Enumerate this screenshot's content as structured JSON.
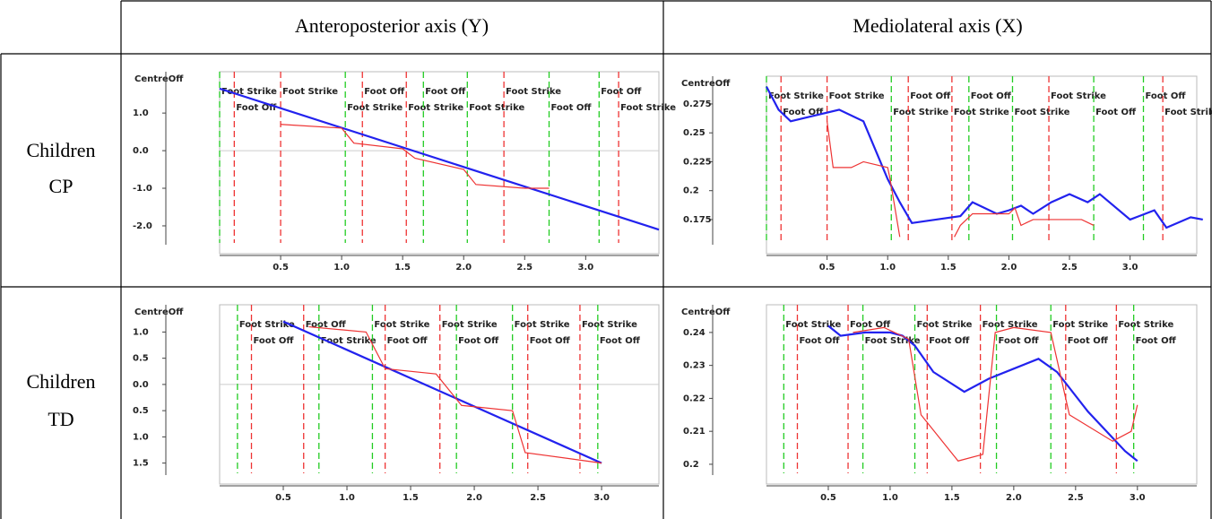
{
  "table": {
    "header": [
      "Anteroposterior axis (Y)",
      "Mediolateral axis (X)"
    ],
    "rows": [
      {
        "label": [
          "Children",
          "CP"
        ]
      },
      {
        "label": [
          "Children",
          "TD"
        ]
      }
    ]
  },
  "charts": [
    {
      "type": "line",
      "y_label": "CentreOff",
      "xlim": [
        0,
        3.6
      ],
      "ylim": [
        -2.74,
        2.1
      ],
      "xticks": [
        {
          "value": 0.5,
          "label": "0.5"
        },
        {
          "value": 1,
          "label": "1.0"
        },
        {
          "value": 1.5,
          "label": "1.5"
        },
        {
          "value": 2,
          "label": "2.0"
        },
        {
          "value": 2.5,
          "label": "2.5"
        },
        {
          "value": 3,
          "label": "3.0"
        }
      ],
      "yticks": [
        {
          "value": 1,
          "label": "1.0"
        },
        {
          "value": 0,
          "label": "0.0"
        },
        {
          "value": -1,
          "label": "-1.0"
        },
        {
          "value": -2,
          "label": "-2.0"
        }
      ],
      "zero_line": true,
      "events": [
        {
          "x": 0,
          "label": "Foot Strike",
          "color": "#2c2"
        },
        {
          "x": 0.12,
          "label": "Foot Off",
          "color": "#e33"
        },
        {
          "x": 0.5,
          "label": "Foot Strike",
          "color": "#e33"
        },
        {
          "x": 1.03,
          "label": "Foot Strike",
          "color": "#2c2"
        },
        {
          "x": 1.17,
          "label": "Foot Off",
          "color": "#e33"
        },
        {
          "x": 1.53,
          "label": "Foot Strike",
          "color": "#e33"
        },
        {
          "x": 1.67,
          "label": "Foot Off",
          "color": "#2c2"
        },
        {
          "x": 2.03,
          "label": "Foot Strike",
          "color": "#2c2"
        },
        {
          "x": 2.33,
          "label": "Foot Strike",
          "color": "#e33"
        },
        {
          "x": 2.7,
          "label": "Foot Off",
          "color": "#2c2"
        },
        {
          "x": 3.11,
          "label": "Foot Off",
          "color": "#2c2"
        },
        {
          "x": 3.27,
          "label": "Foot Strike",
          "color": "#e33"
        }
      ],
      "series": [
        {
          "color": "#22e",
          "x": [
            0,
            3.6
          ],
          "values": [
            1.65,
            -2.1
          ]
        },
        {
          "color": "#e33",
          "x": [
            0.5,
            1.0,
            1.1,
            1.5,
            1.6,
            2.0,
            2.1,
            2.5,
            2.7
          ],
          "values": [
            0.7,
            0.6,
            0.2,
            0.05,
            -0.2,
            -0.5,
            -0.9,
            -1.0,
            -1.0
          ]
        }
      ]
    },
    {
      "type": "line",
      "y_label": "CentreOff",
      "xlim": [
        0,
        3.55
      ],
      "ylim": [
        0.1455,
        0.299
      ],
      "xticks": [
        {
          "value": 0.5,
          "label": "0.5"
        },
        {
          "value": 1,
          "label": "1.0"
        },
        {
          "value": 1.5,
          "label": "1.5"
        },
        {
          "value": 2,
          "label": "2.0"
        },
        {
          "value": 2.5,
          "label": "2.5"
        },
        {
          "value": 3,
          "label": "3.0"
        }
      ],
      "yticks": [
        0.275,
        0.25,
        0.225,
        0.2,
        0.175
      ],
      "zero_line": false,
      "events": [
        {
          "x": 0,
          "label": "Foot Strike",
          "color": "#2c2"
        },
        {
          "x": 0.12,
          "label": "Foot Off",
          "color": "#e33"
        },
        {
          "x": 0.5,
          "label": "Foot Strike",
          "color": "#e33"
        },
        {
          "x": 1.03,
          "label": "Foot Strike",
          "color": "#2c2"
        },
        {
          "x": 1.17,
          "label": "Foot Off",
          "color": "#e33"
        },
        {
          "x": 1.53,
          "label": "Foot Strike",
          "color": "#e33"
        },
        {
          "x": 1.67,
          "label": "Foot Off",
          "color": "#2c2"
        },
        {
          "x": 2.03,
          "label": "Foot Strike",
          "color": "#2c2"
        },
        {
          "x": 2.33,
          "label": "Foot Strike",
          "color": "#e33"
        },
        {
          "x": 2.7,
          "label": "Foot Off",
          "color": "#2c2"
        },
        {
          "x": 3.11,
          "label": "Foot Off",
          "color": "#2c2"
        },
        {
          "x": 3.27,
          "label": "Foot Strike",
          "color": "#e33"
        }
      ],
      "series": [
        {
          "color": "#22e",
          "x": [
            0,
            0.1,
            0.2,
            0.4,
            0.6,
            0.8,
            1.0,
            1.1,
            1.2,
            1.4,
            1.6,
            1.7,
            1.9,
            2.0,
            2.1,
            2.2,
            2.35,
            2.5,
            2.65,
            2.75,
            3.0,
            3.2,
            3.3,
            3.5,
            3.6
          ],
          "values": [
            0.29,
            0.27,
            0.26,
            0.265,
            0.27,
            0.26,
            0.21,
            0.19,
            0.172,
            0.175,
            0.178,
            0.19,
            0.18,
            0.183,
            0.187,
            0.18,
            0.19,
            0.197,
            0.19,
            0.197,
            0.175,
            0.183,
            0.168,
            0.177,
            0.175
          ]
        },
        {
          "color": "#e33",
          "x": [
            0.5,
            0.55,
            0.7,
            0.8,
            1.0,
            1.02,
            1.1,
            1.2,
            1.55,
            1.6,
            1.7,
            2.0,
            2.05,
            2.1,
            2.2,
            2.6,
            2.7
          ],
          "values": [
            0.26,
            0.22,
            0.22,
            0.225,
            0.22,
            0.21,
            0.16,
            null,
            0.16,
            0.17,
            0.18,
            0.18,
            0.185,
            0.17,
            0.175,
            0.175,
            0.17
          ]
        }
      ]
    },
    {
      "type": "line",
      "y_label": "CentreOff",
      "xlim": [
        0,
        3.45
      ],
      "ylim": [
        -1.9,
        1.52
      ],
      "xticks": [
        {
          "value": 0.5,
          "label": "0.5"
        },
        {
          "value": 1,
          "label": "1.0"
        },
        {
          "value": 1.5,
          "label": "1.5"
        },
        {
          "value": 2,
          "label": "2.0"
        },
        {
          "value": 2.5,
          "label": "2.5"
        },
        {
          "value": 3,
          "label": "3.0"
        }
      ],
      "yticks": [
        {
          "value": 1,
          "label": "1.0"
        },
        {
          "value": 0.5,
          "label": "0.5"
        },
        {
          "value": 0,
          "label": "0.0"
        },
        {
          "value": -0.5,
          "label": "0.5"
        },
        {
          "value": -1,
          "label": "1.0"
        },
        {
          "value": -1.5,
          "label": "1.5"
        }
      ],
      "zero_line": true,
      "events": [
        {
          "x": 0.14,
          "label": "Foot Strike",
          "color": "#2c2"
        },
        {
          "x": 0.25,
          "label": "Foot Off",
          "color": "#e33"
        },
        {
          "x": 0.66,
          "label": "Foot Off",
          "color": "#e33"
        },
        {
          "x": 0.78,
          "label": "Foot Strike",
          "color": "#2c2"
        },
        {
          "x": 1.2,
          "label": "Foot Strike",
          "color": "#2c2"
        },
        {
          "x": 1.3,
          "label": "Foot Off",
          "color": "#e33"
        },
        {
          "x": 1.73,
          "label": "Foot Strike",
          "color": "#e33"
        },
        {
          "x": 1.86,
          "label": "Foot Off",
          "color": "#2c2"
        },
        {
          "x": 2.3,
          "label": "Foot Strike",
          "color": "#2c2"
        },
        {
          "x": 2.42,
          "label": "Foot Off",
          "color": "#e33"
        },
        {
          "x": 2.83,
          "label": "Foot Strike",
          "color": "#e33"
        },
        {
          "x": 2.97,
          "label": "Foot Off",
          "color": "#2c2"
        }
      ],
      "series": [
        {
          "color": "#22e",
          "x": [
            0.5,
            3.0
          ],
          "values": [
            1.2,
            -1.5
          ]
        },
        {
          "color": "#e33",
          "x": [
            0.7,
            1.15,
            1.3,
            1.7,
            1.9,
            2.3,
            2.4,
            3.0
          ],
          "values": [
            1.1,
            1.0,
            0.3,
            0.2,
            -0.4,
            -0.5,
            -1.3,
            -1.5
          ]
        }
      ]
    },
    {
      "type": "line",
      "y_label": "CentreOff",
      "xlim": [
        0,
        3.48
      ],
      "ylim": [
        0.194,
        0.2484
      ],
      "xticks": [
        {
          "value": 0.5,
          "label": "0.5"
        },
        {
          "value": 1,
          "label": "1.0"
        },
        {
          "value": 1.5,
          "label": "1.5"
        },
        {
          "value": 2,
          "label": "2.0"
        },
        {
          "value": 2.5,
          "label": "2.5"
        },
        {
          "value": 3,
          "label": "3.0"
        }
      ],
      "yticks": [
        0.24,
        0.23,
        0.22,
        0.21,
        0.2
      ],
      "zero_line": false,
      "events": [
        {
          "x": 0.14,
          "label": "Foot Strike",
          "color": "#2c2"
        },
        {
          "x": 0.25,
          "label": "Foot Off",
          "color": "#e33"
        },
        {
          "x": 0.66,
          "label": "Foot Off",
          "color": "#e33"
        },
        {
          "x": 0.78,
          "label": "Foot Strike",
          "color": "#2c2"
        },
        {
          "x": 1.2,
          "label": "Foot Strike",
          "color": "#2c2"
        },
        {
          "x": 1.3,
          "label": "Foot Off",
          "color": "#e33"
        },
        {
          "x": 1.73,
          "label": "Foot Strike",
          "color": "#e33"
        },
        {
          "x": 1.86,
          "label": "Foot Off",
          "color": "#2c2"
        },
        {
          "x": 2.3,
          "label": "Foot Strike",
          "color": "#2c2"
        },
        {
          "x": 2.42,
          "label": "Foot Off",
          "color": "#e33"
        },
        {
          "x": 2.83,
          "label": "Foot Strike",
          "color": "#e33"
        },
        {
          "x": 2.97,
          "label": "Foot Off",
          "color": "#2c2"
        }
      ],
      "series": [
        {
          "color": "#22e",
          "x": [
            0.5,
            0.6,
            0.8,
            1.0,
            1.1,
            1.2,
            1.35,
            1.6,
            1.8,
            2.0,
            2.2,
            2.35,
            2.6,
            2.9,
            3.0
          ],
          "values": [
            0.242,
            0.239,
            0.24,
            0.24,
            0.239,
            0.236,
            0.228,
            0.222,
            0.226,
            0.229,
            0.232,
            0.228,
            0.216,
            0.204,
            0.201
          ]
        },
        {
          "color": "#e33",
          "x": [
            0.7,
            0.95,
            1.15,
            1.25,
            1.55,
            1.75,
            1.85,
            2.0,
            2.3,
            2.45,
            2.8,
            2.95,
            3.0
          ],
          "values": [
            0.24,
            0.2415,
            0.238,
            0.215,
            0.201,
            0.203,
            0.24,
            0.2415,
            0.24,
            0.215,
            0.207,
            0.21,
            0.218
          ]
        }
      ]
    }
  ]
}
